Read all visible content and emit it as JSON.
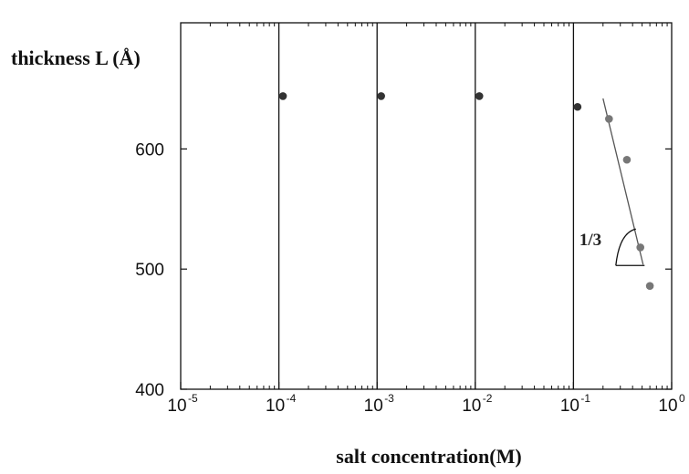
{
  "chart_data": {
    "type": "scatter",
    "title": "",
    "ylabel": "thickness L (Å)",
    "xlabel": "salt concentration(M)",
    "x_scale": "log",
    "xlim": [
      1e-05,
      1
    ],
    "ylim": [
      400,
      705
    ],
    "x_tick_labels": [
      {
        "base": "10",
        "exp": "-5",
        "value": 1e-05
      },
      {
        "base": "10",
        "exp": "-4",
        "value": 0.0001
      },
      {
        "base": "10",
        "exp": "-3",
        "value": 0.001
      },
      {
        "base": "10",
        "exp": "-2",
        "value": 0.01
      },
      {
        "base": "10",
        "exp": "-1",
        "value": 0.1
      },
      {
        "base": "10",
        "exp": "0",
        "value": 1
      }
    ],
    "y_ticks": [
      {
        "label": "600",
        "value": 600
      },
      {
        "label": "500",
        "value": 500
      },
      {
        "label": "400",
        "value": 400
      }
    ],
    "vertical_lines_at": [
      0.0001,
      0.001,
      0.01,
      0.1
    ],
    "series": [
      {
        "points": [
          {
            "x": 0.00011,
            "y": 644
          },
          {
            "x": 0.0011,
            "y": 644
          },
          {
            "x": 0.011,
            "y": 644
          },
          {
            "x": 0.11,
            "y": 635
          },
          {
            "x": 0.23,
            "y": 625
          },
          {
            "x": 0.35,
            "y": 591
          },
          {
            "x": 0.48,
            "y": 518
          },
          {
            "x": 0.6,
            "y": 486
          }
        ]
      }
    ],
    "fit_line": {
      "x_start": 0.2,
      "y_start": 642,
      "x_end": 0.47,
      "y_end": 525
    },
    "annotation": {
      "text": "1/3"
    },
    "colors": {
      "axis": "#111111",
      "point_dark": "#333333",
      "point_gray": "#777777",
      "fit": "#555555"
    }
  }
}
